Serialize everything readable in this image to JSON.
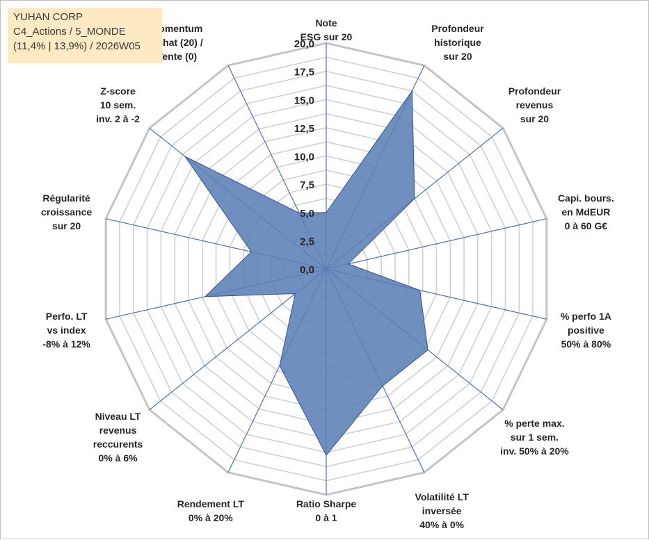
{
  "header": {
    "company": "YUHAN CORP",
    "category": "C4_Actions / 5_MONDE",
    "period": "(11,4% | 13,9%) / 2026W05"
  },
  "chart_data": {
    "type": "radar",
    "range": [
      0,
      20
    ],
    "ticks": [
      "0,0",
      "2,5",
      "5,0",
      "7,5",
      "10,0",
      "12,5",
      "15,0",
      "17,5",
      "20,0"
    ],
    "grid": true,
    "fill_color": "#5b7fb5",
    "line_color": "#2e55a0",
    "axes": [
      {
        "label": [
          "Note",
          "ESG sur 20"
        ],
        "value": 5.0
      },
      {
        "label": [
          "Profondeur",
          "historique",
          "sur 20"
        ],
        "value": 17.5
      },
      {
        "label": [
          "Profondeur",
          "revenus",
          "sur 20"
        ],
        "value": 10.0
      },
      {
        "label": [
          "Capi. bours.",
          "en MdEUR",
          "0 à 60 G€"
        ],
        "value": 2.0
      },
      {
        "label": [
          "% perfo 1A",
          "positive",
          "50% à 80%"
        ],
        "value": 8.5
      },
      {
        "label": [
          "% perte max.",
          "sur 1 sem.",
          "inv. 50% à 20%"
        ],
        "value": 11.5
      },
      {
        "label": [
          "Volatilité LT",
          "inversée",
          "40% à 0%"
        ],
        "value": 11.5
      },
      {
        "label": [
          "Ratio Sharpe",
          "0 à 1"
        ],
        "value": 16.5
      },
      {
        "label": [
          "Rendement LT",
          "0% à 20%"
        ],
        "value": 9.5
      },
      {
        "label": [
          "Niveau LT",
          "revenus",
          "reccurents",
          "0% à 6%"
        ],
        "value": 3.5
      },
      {
        "label": [
          "Perfo. LT",
          "vs index",
          "-8% à 12%"
        ],
        "value": 11.0
      },
      {
        "label": [
          "Régularité",
          "croissance",
          "sur 20"
        ],
        "value": 6.8
      },
      {
        "label": [
          "Z-score",
          "10 sem.",
          "inv. 2 à -2"
        ],
        "value": 16.0
      },
      {
        "label": [
          "Momentum",
          "Achat (20) /",
          "Vente (0)"
        ],
        "value": 5.5
      }
    ]
  }
}
